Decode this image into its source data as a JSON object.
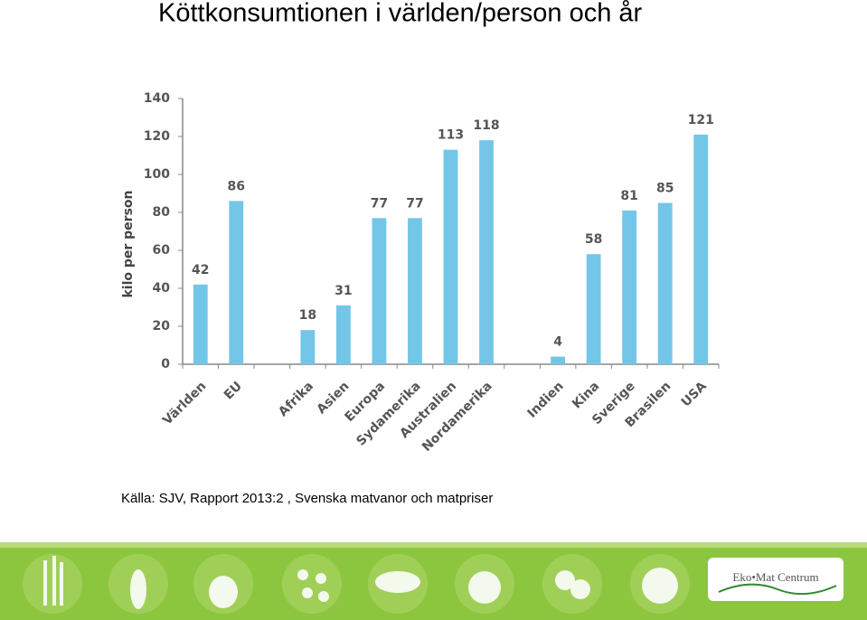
{
  "chart_data": {
    "type": "bar",
    "title": "Köttkonsumtionen i världen/person och år",
    "ylabel": "kilo per person",
    "categories": [
      "Världen",
      "EU",
      null,
      "Afrika",
      "Asien",
      "Europa",
      "Sydamerika",
      "Australien",
      "Nordamerika",
      null,
      "Indien",
      "Kina",
      "Sverige",
      "Brasilen",
      "USA"
    ],
    "values": [
      42,
      86,
      null,
      18,
      31,
      77,
      77,
      113,
      118,
      null,
      4,
      58,
      81,
      85,
      121
    ],
    "color": "#73c6e8",
    "ylim": [
      0,
      140
    ],
    "yticks": [
      0,
      20,
      40,
      60,
      80,
      100,
      120,
      140
    ],
    "grid": false,
    "source": "Källa: SJV, Rapport 2013:2 , Svenska matvanor och matpriser"
  },
  "footer": {
    "logo": "Eko•Mat Centrum"
  }
}
